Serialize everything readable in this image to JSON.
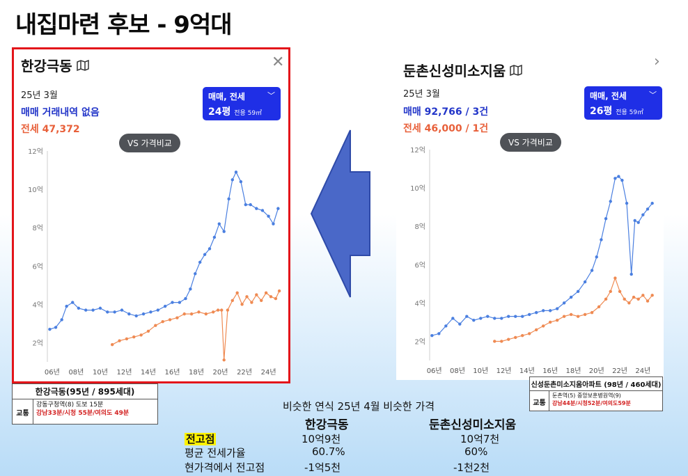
{
  "slide": {
    "title": "내집마련 후보 - 9억대"
  },
  "left_card": {
    "name": "한강극동",
    "date": "25년 3월",
    "trade": "매매 거래내역 없음",
    "rent": "전세 47,372",
    "type_label": "매매, 전세",
    "size_main": "24평",
    "size_sub": "전용 59㎡",
    "vs_label": "VS 가격비교",
    "info": {
      "title": "한강극동(95년 / 895세대)",
      "key": "교통",
      "line1": "강동구청역(8) 도보 15분",
      "line2": "강남33분/시청 55분/여의도 49분"
    }
  },
  "right_card": {
    "name": "둔촌신성미소지움",
    "date": "25년 3월",
    "trade": "매매 92,766 / 3건",
    "rent": "전세 46,000 / 1건",
    "type_label": "매매, 전세",
    "size_main": "26평",
    "size_sub": "전용 59㎡",
    "vs_label": "VS 가격비교",
    "info": {
      "title": "신성둔촌미소지움아파트 (98년 / 460세대)",
      "key": "교통",
      "line1": "둔촌역(5) 중앙보훈병원역(9)",
      "line2": "강남44분/시청52분/여의도59분"
    }
  },
  "summary": {
    "caption": "비슷한 연식 25년 4월 비슷한 가격",
    "col1": "한강극동",
    "col2": "둔촌신성미소지움",
    "rows": [
      {
        "label": "전고점",
        "v1": "10억9천",
        "v2": "10억7천"
      },
      {
        "label": "평균 전세가율",
        "v1": "60.7%",
        "v2": "60%"
      },
      {
        "label": "현가격에서 전고점",
        "v1": "-1억5천",
        "v2": "-1천2천"
      }
    ]
  },
  "chart_data": [
    {
      "type": "line",
      "title": "",
      "yticks": [
        "2억",
        "4억",
        "6억",
        "8억",
        "10억",
        "12억"
      ],
      "xticks": [
        "06년",
        "08년",
        "10년",
        "12년",
        "14년",
        "16년",
        "18년",
        "20년",
        "22년",
        "24년"
      ],
      "ylim": [
        1.0,
        12.0
      ],
      "xlim": [
        2005.6,
        2025.3
      ],
      "series": [
        {
          "name": "매매",
          "color": "#4a7fe0",
          "x": [
            2005.8,
            2006.3,
            2006.8,
            2007.2,
            2007.7,
            2008.2,
            2008.8,
            2009.4,
            2010.0,
            2010.6,
            2011.2,
            2011.8,
            2012.4,
            2013.0,
            2013.6,
            2014.2,
            2014.8,
            2015.4,
            2016.0,
            2016.6,
            2017.1,
            2017.5,
            2017.9,
            2018.3,
            2018.7,
            2019.1,
            2019.5,
            2019.9,
            2020.3,
            2020.7,
            2021.0,
            2021.3,
            2021.7,
            2022.1,
            2022.5,
            2023.0,
            2023.5,
            2024.0,
            2024.4,
            2024.8
          ],
          "y": [
            2.7,
            2.8,
            3.2,
            3.9,
            4.1,
            3.8,
            3.7,
            3.7,
            3.8,
            3.6,
            3.6,
            3.7,
            3.5,
            3.4,
            3.5,
            3.6,
            3.7,
            3.9,
            4.1,
            4.1,
            4.3,
            4.8,
            5.6,
            6.2,
            6.6,
            6.9,
            7.5,
            8.2,
            7.8,
            9.5,
            10.5,
            10.9,
            10.4,
            9.2,
            9.2,
            9.0,
            8.9,
            8.6,
            8.2,
            9.0
          ]
        },
        {
          "name": "전세",
          "color": "#ef8a52",
          "x": [
            2011.0,
            2011.6,
            2012.2,
            2012.8,
            2013.4,
            2014.0,
            2014.6,
            2015.2,
            2015.8,
            2016.4,
            2017.0,
            2017.6,
            2018.2,
            2018.8,
            2019.4,
            2019.8,
            2020.1,
            2020.3,
            2020.6,
            2021.0,
            2021.4,
            2021.8,
            2022.2,
            2022.6,
            2023.0,
            2023.4,
            2023.8,
            2024.2,
            2024.6,
            2024.9
          ],
          "y": [
            1.9,
            2.1,
            2.2,
            2.3,
            2.4,
            2.6,
            2.9,
            3.1,
            3.2,
            3.3,
            3.5,
            3.5,
            3.6,
            3.5,
            3.6,
            3.7,
            3.7,
            1.1,
            3.7,
            4.2,
            4.6,
            4.0,
            4.4,
            4.1,
            4.5,
            4.2,
            4.6,
            4.4,
            4.3,
            4.7
          ]
        }
      ]
    },
    {
      "type": "line",
      "title": "",
      "yticks": [
        "2억",
        "4억",
        "6억",
        "8억",
        "10억",
        "12억"
      ],
      "xticks": [
        "06년",
        "08년",
        "10년",
        "12년",
        "14년",
        "16년",
        "18년",
        "20년",
        "22년",
        "24년"
      ],
      "ylim": [
        1.0,
        12.0
      ],
      "xlim": [
        2005.6,
        2025.3
      ],
      "series": [
        {
          "name": "매매",
          "color": "#4a7fe0",
          "x": [
            2005.8,
            2006.4,
            2007.0,
            2007.6,
            2008.2,
            2008.8,
            2009.4,
            2010.0,
            2010.6,
            2011.2,
            2011.8,
            2012.4,
            2013.0,
            2013.6,
            2014.2,
            2014.8,
            2015.4,
            2016.0,
            2016.6,
            2017.2,
            2017.8,
            2018.4,
            2019.0,
            2019.6,
            2020.0,
            2020.4,
            2020.8,
            2021.2,
            2021.6,
            2021.9,
            2022.2,
            2022.6,
            2023.0,
            2023.3,
            2023.6,
            2024.0,
            2024.4,
            2024.8
          ],
          "y": [
            2.3,
            2.4,
            2.8,
            3.2,
            2.9,
            3.3,
            3.1,
            3.2,
            3.3,
            3.2,
            3.2,
            3.3,
            3.3,
            3.3,
            3.4,
            3.5,
            3.6,
            3.6,
            3.7,
            4.0,
            4.3,
            4.6,
            5.1,
            5.7,
            6.4,
            7.3,
            8.4,
            9.3,
            10.5,
            10.6,
            10.4,
            9.2,
            5.5,
            8.3,
            8.2,
            8.6,
            8.9,
            9.2
          ]
        },
        {
          "name": "전세",
          "color": "#ef8a52",
          "x": [
            2011.2,
            2011.8,
            2012.4,
            2013.0,
            2013.6,
            2014.2,
            2014.8,
            2015.4,
            2016.0,
            2016.6,
            2017.2,
            2017.8,
            2018.4,
            2019.0,
            2019.6,
            2020.2,
            2020.8,
            2021.2,
            2021.6,
            2022.0,
            2022.4,
            2022.8,
            2023.2,
            2023.6,
            2024.0,
            2024.4,
            2024.8
          ],
          "y": [
            2.0,
            2.0,
            2.1,
            2.2,
            2.3,
            2.4,
            2.6,
            2.8,
            3.0,
            3.1,
            3.3,
            3.4,
            3.3,
            3.4,
            3.5,
            3.8,
            4.2,
            4.6,
            5.3,
            4.6,
            4.2,
            4.0,
            4.3,
            4.2,
            4.4,
            4.1,
            4.4
          ]
        }
      ]
    }
  ]
}
